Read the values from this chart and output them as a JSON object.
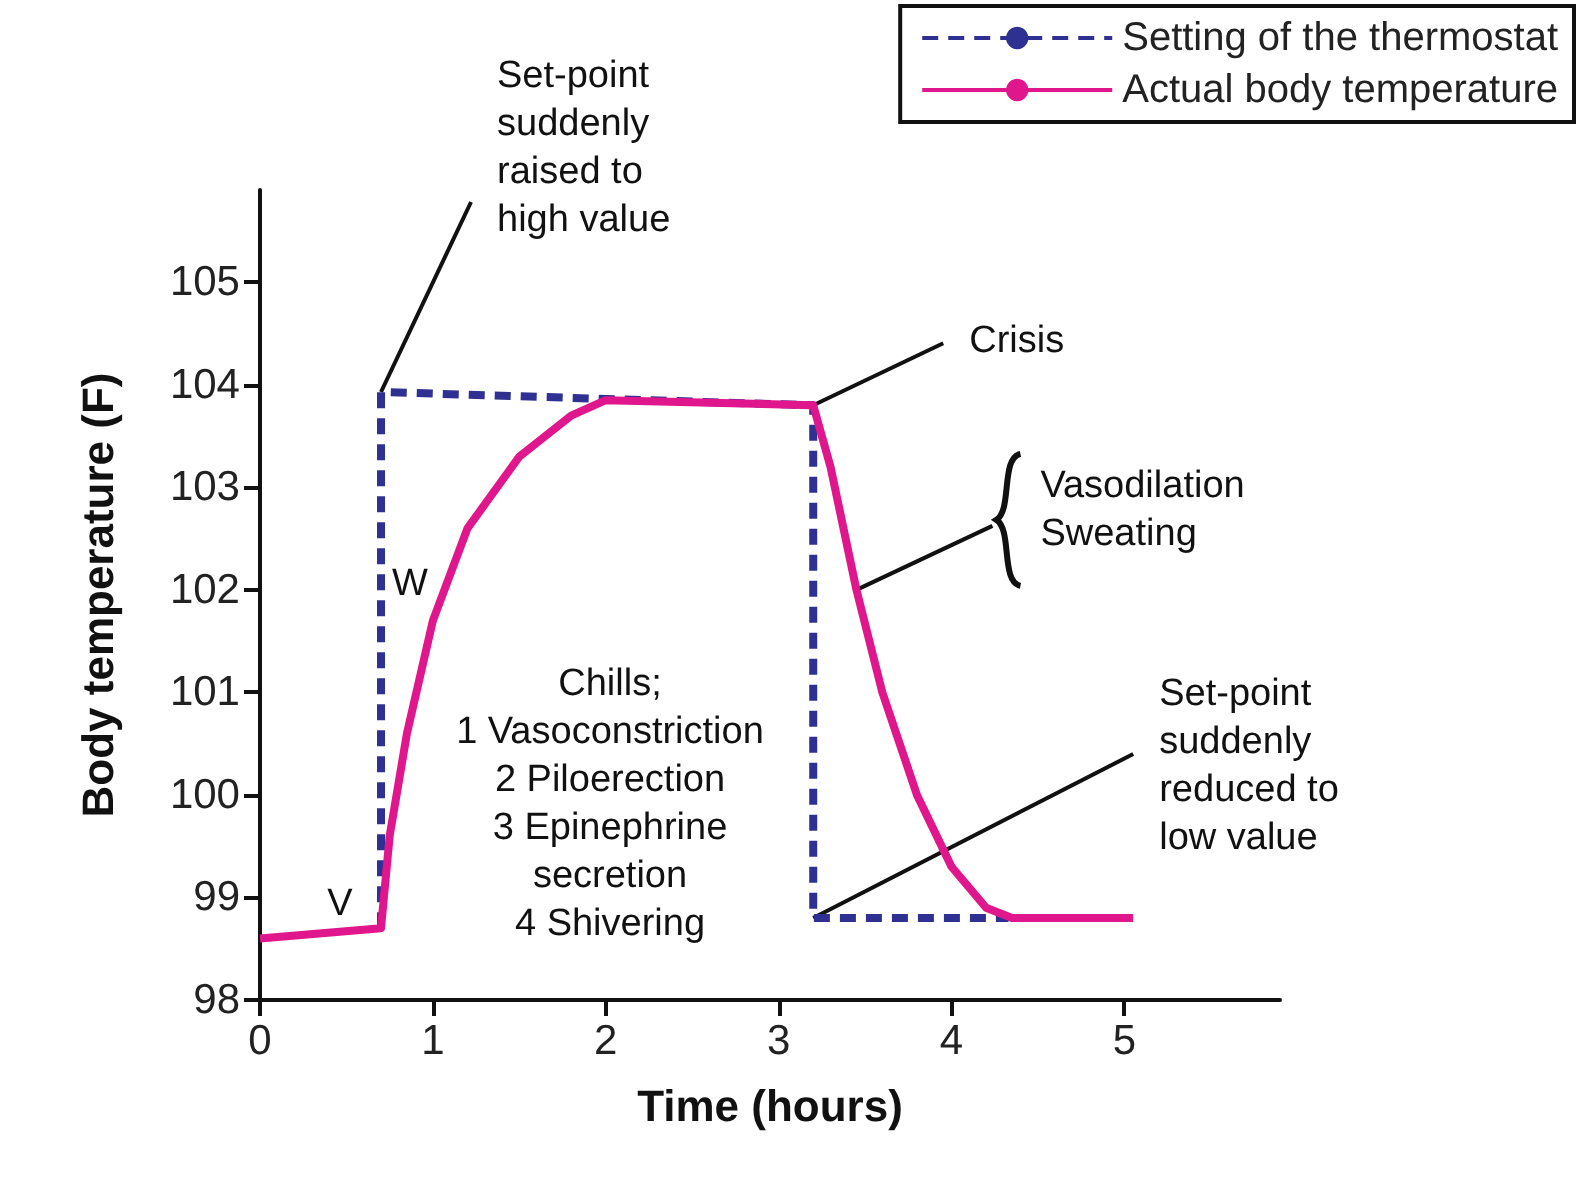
{
  "chart_data": {
    "type": "line",
    "xlabel": "Time (hours)",
    "ylabel": "Body temperature (F)",
    "xlim": [
      0,
      5.9
    ],
    "xticks": [
      0,
      1,
      2,
      3,
      4,
      5
    ],
    "ylim": [
      98,
      105.9
    ],
    "yticks": [
      98,
      99,
      100,
      101,
      102,
      103,
      104,
      105
    ],
    "grid": false,
    "legend": "top right",
    "marker": "none",
    "series": [
      {
        "name": "Setting of the thermostat",
        "color": "#2e3192",
        "line_style": "dashed",
        "x": [
          0.7,
          0.7,
          3.2,
          3.2,
          4.33
        ],
        "values": [
          98.7,
          103.93,
          103.8,
          98.8,
          98.8
        ]
      },
      {
        "name": "Actual body temperature",
        "color": "#e0168c",
        "line_style": "solid",
        "x": [
          0,
          0.7,
          0.75,
          0.85,
          1.0,
          1.2,
          1.5,
          1.8,
          2.0,
          3.2,
          3.3,
          3.45,
          3.6,
          3.8,
          4.0,
          4.2,
          4.35,
          5.05
        ],
        "values": [
          98.6,
          98.7,
          99.6,
          100.6,
          101.7,
          102.6,
          103.3,
          103.7,
          103.85,
          103.8,
          103.2,
          102.0,
          101.0,
          100.0,
          99.3,
          98.9,
          98.8,
          98.8
        ]
      }
    ],
    "annotations": [
      {
        "text": "Set-point\nsuddenly\nraised to\nhigh value",
        "x": 0.7,
        "y": 103.93
      },
      {
        "text": "Crisis",
        "x": 3.2,
        "y": 103.8
      },
      {
        "text": "Vasodilation\nSweating",
        "x": 3.45,
        "y": 102.0
      },
      {
        "text": "Set-point\nsuddenly\nreduced to\nlow value",
        "x": 3.2,
        "y": 98.8
      },
      "Chills;\n1 Vasoconstriction\n2 Piloerection\n3 Epinephrine\nsecretion\n4 Shivering",
      "V",
      "W"
    ]
  }
}
